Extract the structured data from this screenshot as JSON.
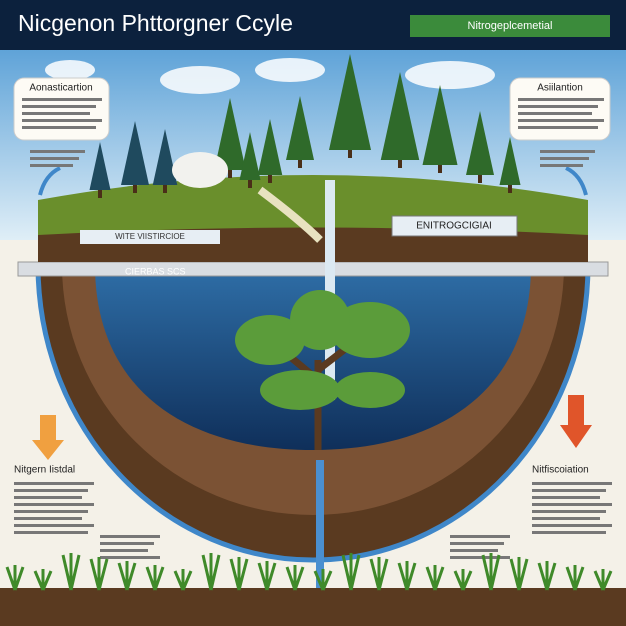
{
  "header": {
    "title": "Nicgenon Phttorgner Ccyle",
    "badge": "Nitrogeplcemetial"
  },
  "labels": {
    "top_left": "Aonasticartion",
    "top_right": "Asiilantion",
    "middle_left": "Nitgern Iistdal",
    "middle_right": "Nitfiscoiation",
    "center_banner": "ENITROGCIGIAI",
    "upper_banner": "WITE VIISTIRCIOE",
    "water_tag": "CIERBAS SCS"
  }
}
